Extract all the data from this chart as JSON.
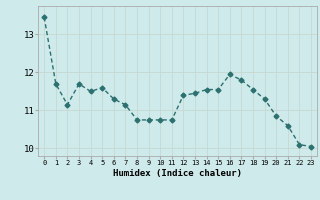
{
  "x": [
    0,
    1,
    2,
    3,
    4,
    5,
    6,
    7,
    8,
    9,
    10,
    11,
    12,
    13,
    14,
    15,
    16,
    17,
    18,
    19,
    20,
    21,
    22,
    23
  ],
  "y": [
    13.45,
    11.7,
    11.15,
    11.7,
    11.5,
    11.6,
    11.3,
    11.15,
    10.75,
    10.75,
    10.75,
    10.75,
    11.4,
    11.45,
    11.55,
    11.55,
    11.95,
    11.8,
    11.55,
    11.3,
    10.85,
    10.6,
    10.1,
    10.05
  ],
  "line_color": "#2d7070",
  "marker": "D",
  "marker_size": 2.5,
  "linewidth": 1.0,
  "xlabel": "Humidex (Indice chaleur)",
  "xlim": [
    -0.5,
    23.5
  ],
  "ylim": [
    9.8,
    13.75
  ],
  "yticks": [
    10,
    11,
    12,
    13
  ],
  "xticks": [
    0,
    1,
    2,
    3,
    4,
    5,
    6,
    7,
    8,
    9,
    10,
    11,
    12,
    13,
    14,
    15,
    16,
    17,
    18,
    19,
    20,
    21,
    22,
    23
  ],
  "bg_color": "#ceeaea",
  "grid_color": "#b8d8d8",
  "spine_color": "#aaaaaa"
}
